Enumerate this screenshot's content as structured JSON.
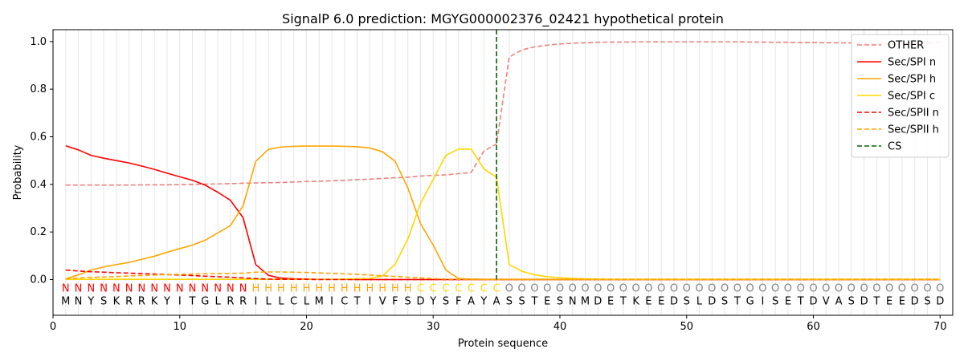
{
  "chart_data": {
    "type": "line",
    "title": "SignalP 6.0 prediction: MGYG000002376_02421 hypothetical protein",
    "xlabel": "Protein sequence",
    "ylabel": "Probability",
    "xlim": [
      0,
      71
    ],
    "ylim": [
      -0.15,
      1.05
    ],
    "x_ticks": [
      "0",
      "10",
      "20",
      "30",
      "40",
      "50",
      "60",
      "70"
    ],
    "y_ticks": [
      "0.0",
      "0.2",
      "0.4",
      "0.6",
      "0.8",
      "1.0"
    ],
    "legend_position": "top-right",
    "cleavage_site": 35,
    "sequence": "MNYSKRRKYITGLRRILLCLMICTIVFSDYSFAYASSTESNMDETKEEDSLDSTGISETDVASDTEEDSD",
    "labels": "NNNNNNNNNNNNNNNHHHHHHHHHHHHHCCCCCCCOOOOOOOOOOOOOOOOOOOOOOOOOOOOOOOOOOO",
    "label_colors": {
      "N": "#ff0000",
      "H": "#ffa500",
      "C": "#ffd700",
      "O": "#808080"
    },
    "series": [
      {
        "name": "OTHER",
        "color": "#f08080",
        "style": "dashed",
        "values": [
          0.397,
          0.397,
          0.397,
          0.397,
          0.397,
          0.397,
          0.398,
          0.398,
          0.398,
          0.399,
          0.4,
          0.401,
          0.402,
          0.403,
          0.405,
          0.406,
          0.407,
          0.408,
          0.41,
          0.412,
          0.413,
          0.415,
          0.417,
          0.42,
          0.422,
          0.425,
          0.428,
          0.43,
          0.435,
          0.438,
          0.44,
          0.445,
          0.45,
          0.54,
          0.57,
          0.935,
          0.965,
          0.978,
          0.985,
          0.99,
          0.993,
          0.995,
          0.997,
          0.998,
          0.998,
          0.999,
          0.999,
          0.999,
          0.999,
          0.999,
          0.999,
          0.999,
          0.999,
          0.999,
          0.998,
          0.998,
          0.997,
          0.997,
          0.996,
          0.996,
          0.995,
          0.995,
          0.994,
          0.993,
          0.992,
          0.99,
          0.99,
          0.992,
          0.994,
          0.996
        ]
      },
      {
        "name": "Sec/SPI n",
        "color": "#ff0000",
        "style": "solid",
        "values": [
          0.562,
          0.545,
          0.522,
          0.51,
          0.5,
          0.49,
          0.477,
          0.463,
          0.447,
          0.432,
          0.417,
          0.397,
          0.367,
          0.333,
          0.26,
          0.063,
          0.018,
          0.006,
          0.003,
          0.002,
          0.001,
          0.001,
          0.001,
          0,
          0,
          0,
          0,
          0,
          0,
          0,
          0,
          0,
          0,
          0,
          0,
          0,
          0,
          0,
          0,
          0,
          0,
          0,
          0,
          0,
          0,
          0,
          0,
          0,
          0,
          0,
          0,
          0,
          0,
          0,
          0,
          0,
          0,
          0,
          0,
          0,
          0,
          0,
          0,
          0,
          0,
          0,
          0,
          0,
          0,
          0
        ]
      },
      {
        "name": "Sec/SPI h",
        "color": "#ffa500",
        "style": "solid",
        "values": [
          0.003,
          0.02,
          0.04,
          0.053,
          0.063,
          0.072,
          0.085,
          0.098,
          0.115,
          0.13,
          0.145,
          0.165,
          0.196,
          0.227,
          0.31,
          0.497,
          0.547,
          0.557,
          0.56,
          0.561,
          0.561,
          0.561,
          0.56,
          0.558,
          0.553,
          0.537,
          0.497,
          0.385,
          0.235,
          0.145,
          0.04,
          0.004,
          0.002,
          0.001,
          0.001,
          0.001,
          0.001,
          0.001,
          0.001,
          0.001,
          0.001,
          0.001,
          0.001,
          0.001,
          0.001,
          0.001,
          0.001,
          0.001,
          0.001,
          0.001,
          0.001,
          0.001,
          0.001,
          0.001,
          0.001,
          0.001,
          0.001,
          0.001,
          0.001,
          0.001,
          0.001,
          0.001,
          0.001,
          0.001,
          0.001,
          0.001,
          0.001,
          0.001,
          0.001,
          0.001
        ]
      },
      {
        "name": "Sec/SPI c",
        "color": "#ffd700",
        "style": "solid",
        "values": [
          0.001,
          0.001,
          0.001,
          0.001,
          0.001,
          0.001,
          0.001,
          0.001,
          0.001,
          0.001,
          0.001,
          0.001,
          0.001,
          0.001,
          0.001,
          0.001,
          0.001,
          0.001,
          0.001,
          0.001,
          0.001,
          0.001,
          0.002,
          0.003,
          0.005,
          0.015,
          0.065,
          0.17,
          0.32,
          0.42,
          0.522,
          0.548,
          0.548,
          0.465,
          0.43,
          0.063,
          0.035,
          0.02,
          0.012,
          0.008,
          0.005,
          0.003,
          0.002,
          0.001,
          0.001,
          0.001,
          0.001,
          0.001,
          0.001,
          0.001,
          0.001,
          0.001,
          0.001,
          0.001,
          0.001,
          0.001,
          0.001,
          0.001,
          0.001,
          0.001,
          0.001,
          0.001,
          0.001,
          0.001,
          0.001,
          0.001,
          0.001,
          0.001,
          0.001,
          0.001
        ]
      },
      {
        "name": "Sec/SPII n",
        "color": "#ff0000",
        "style": "dashed",
        "values": [
          0.04,
          0.036,
          0.033,
          0.031,
          0.029,
          0.027,
          0.025,
          0.023,
          0.021,
          0.019,
          0.017,
          0.014,
          0.012,
          0.01,
          0.007,
          0.004,
          0.002,
          0.001,
          0.001,
          0.001,
          0,
          0,
          0,
          0,
          0,
          0,
          0,
          0,
          0,
          0,
          0,
          0,
          0,
          0,
          0,
          0,
          0,
          0,
          0,
          0,
          0,
          0,
          0,
          0,
          0,
          0,
          0,
          0,
          0,
          0,
          0,
          0,
          0,
          0,
          0,
          0,
          0,
          0,
          0,
          0,
          0,
          0,
          0,
          0,
          0,
          0,
          0,
          0,
          0,
          0
        ]
      },
      {
        "name": "Sec/SPII h",
        "color": "#ffa500",
        "style": "dashed",
        "values": [
          0.003,
          0.006,
          0.009,
          0.011,
          0.013,
          0.015,
          0.017,
          0.019,
          0.021,
          0.022,
          0.023,
          0.024,
          0.025,
          0.026,
          0.027,
          0.031,
          0.032,
          0.032,
          0.031,
          0.03,
          0.028,
          0.026,
          0.024,
          0.022,
          0.019,
          0.016,
          0.013,
          0.01,
          0.007,
          0.004,
          0.002,
          0.001,
          0,
          0,
          0,
          0,
          0,
          0,
          0,
          0,
          0,
          0,
          0,
          0,
          0,
          0,
          0,
          0,
          0,
          0,
          0,
          0,
          0,
          0,
          0,
          0,
          0,
          0,
          0,
          0,
          0,
          0,
          0,
          0,
          0,
          0,
          0,
          0,
          0,
          0
        ]
      }
    ],
    "cs_legend": {
      "name": "CS",
      "color": "#006400",
      "style": "dashed"
    }
  }
}
